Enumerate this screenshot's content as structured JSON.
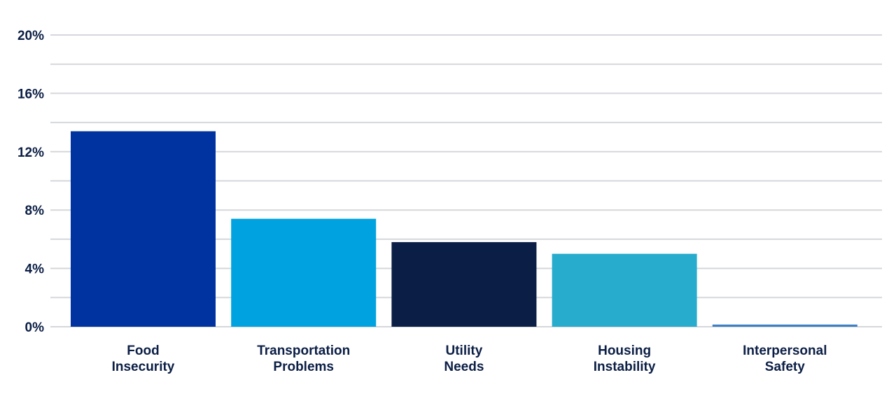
{
  "chart_data": {
    "type": "bar",
    "title": "",
    "xlabel": "",
    "ylabel": "",
    "ylim": [
      0,
      20
    ],
    "y_ticks": [
      "0%",
      "4%",
      "8%",
      "12%",
      "16%",
      "20%"
    ],
    "y_tick_values": [
      0,
      4,
      8,
      12,
      16,
      20
    ],
    "grid": true,
    "legend": "none",
    "categories": [
      [
        "Food",
        "Insecurity"
      ],
      [
        "Transportation",
        "Problems"
      ],
      [
        "Utility",
        "Needs"
      ],
      [
        "Housing",
        "Instability"
      ],
      [
        "Interpersonal",
        "Safety"
      ]
    ],
    "values": [
      13.4,
      7.4,
      5.8,
      5.0,
      0.15
    ],
    "colors": [
      "#0033a0",
      "#00a3e0",
      "#0b1e45",
      "#27acce",
      "#3f7fc4"
    ]
  }
}
